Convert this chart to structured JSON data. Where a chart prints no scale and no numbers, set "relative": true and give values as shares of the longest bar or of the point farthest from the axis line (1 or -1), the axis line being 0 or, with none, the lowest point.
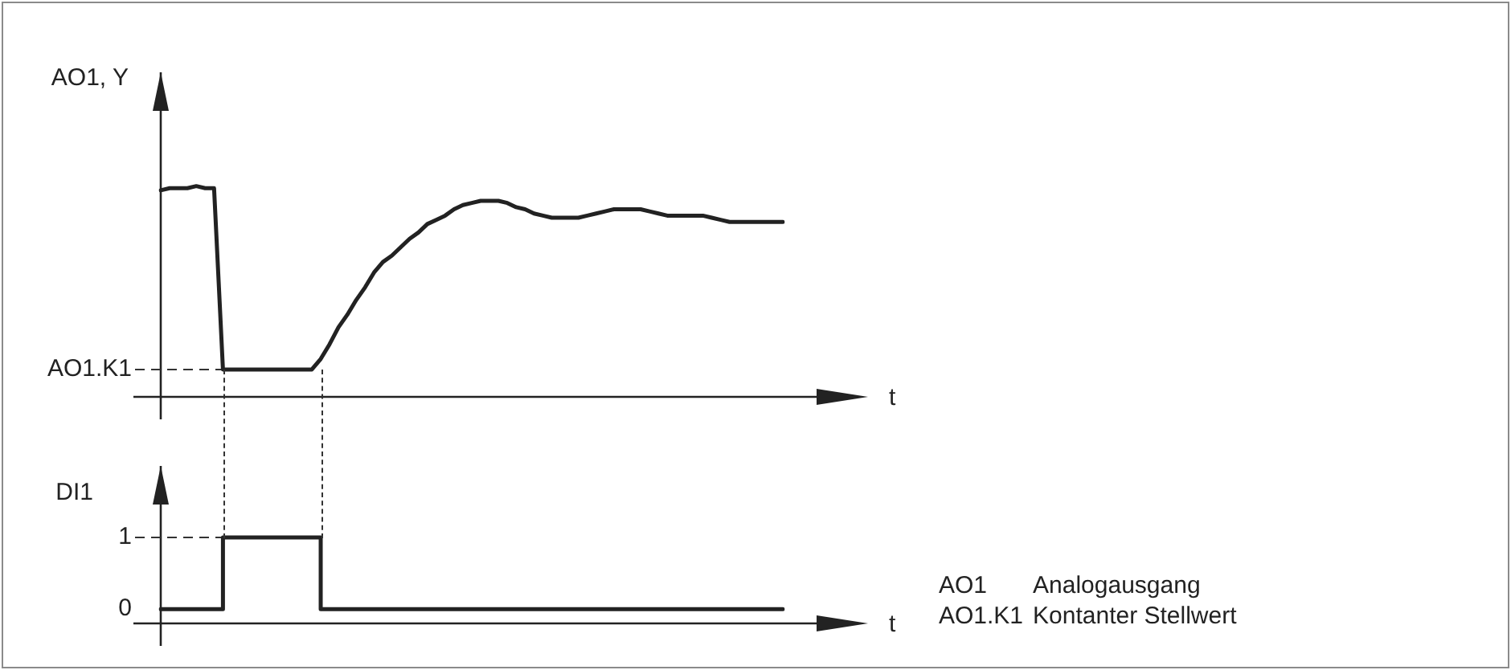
{
  "chart_data": [
    {
      "type": "line",
      "relative": true,
      "ylabel": "AO1, Y",
      "xlabel": "t",
      "tick_labels": false,
      "grid": false,
      "legend": false,
      "marker": "none",
      "line_style": "solid",
      "categories": [
        null,
        null,
        null,
        null,
        null,
        null,
        null,
        null,
        null,
        null,
        null,
        null,
        null,
        null,
        null,
        null,
        null,
        null,
        null,
        null,
        null,
        null,
        null,
        null,
        null,
        null,
        null,
        null,
        null,
        null,
        null,
        null,
        null,
        null,
        null,
        null,
        null,
        null,
        null,
        null,
        null,
        null,
        null,
        null,
        null,
        null,
        null,
        null,
        null,
        null,
        null,
        null,
        null,
        null,
        null,
        null,
        null,
        null,
        null,
        null,
        null,
        null,
        null,
        null,
        null,
        null,
        null,
        null,
        null,
        null,
        null
      ],
      "series": [
        {
          "color": "#222222",
          "values": [
            0.98,
            0.99,
            0.99,
            0.99,
            1,
            0.99,
            0.99,
            0.13,
            0.13,
            0.13,
            0.13,
            0.13,
            0.13,
            0.13,
            0.13,
            0.13,
            0.13,
            0.13,
            0.18,
            0.25,
            0.33,
            0.39,
            0.46,
            0.52,
            0.59,
            0.64,
            0.67,
            0.71,
            0.75,
            0.78,
            0.82,
            0.84,
            0.86,
            0.89,
            0.91,
            0.92,
            0.93,
            0.93,
            0.93,
            0.92,
            0.9,
            0.89,
            0.87,
            0.86,
            0.85,
            0.85,
            0.85,
            0.85,
            0.86,
            0.87,
            0.88,
            0.89,
            0.89,
            0.89,
            0.89,
            0.88,
            0.87,
            0.86,
            0.86,
            0.86,
            0.86,
            0.86,
            0.85,
            0.84,
            0.83,
            0.83,
            0.83,
            0.83,
            0.83,
            0.83,
            0.83
          ]
        }
      ],
      "ref_lines": [
        {
          "axis": "y",
          "value": 0.13,
          "label": "AO1.K1",
          "line_style": "dashed"
        }
      ]
    },
    {
      "type": "step",
      "ylabel": "DI1",
      "xlabel": "t",
      "ylim": [
        -0.2,
        2
      ],
      "yticks": [
        0,
        1
      ],
      "tick_labels": "y",
      "grid": false,
      "legend": false,
      "marker": "none",
      "line_style": "solid",
      "categories": [
        null,
        null,
        null,
        null,
        null,
        null,
        null,
        null,
        null,
        null,
        null,
        null,
        null,
        null,
        null,
        null,
        null,
        null,
        null,
        null,
        null,
        null,
        null,
        null,
        null,
        null,
        null,
        null,
        null,
        null,
        null,
        null,
        null,
        null,
        null,
        null,
        null,
        null,
        null,
        null,
        null,
        null,
        null,
        null,
        null,
        null,
        null,
        null,
        null,
        null,
        null,
        null,
        null,
        null,
        null,
        null,
        null,
        null,
        null,
        null,
        null,
        null,
        null,
        null,
        null,
        null,
        null,
        null,
        null,
        null,
        null
      ],
      "series": [
        {
          "color": "#222222",
          "values": [
            0,
            0,
            0,
            0,
            0,
            0,
            0,
            1,
            1,
            1,
            1,
            1,
            1,
            1,
            1,
            1,
            1,
            1,
            0,
            0,
            0,
            0,
            0,
            0,
            0,
            0,
            0,
            0,
            0,
            0,
            0,
            0,
            0,
            0,
            0,
            0,
            0,
            0,
            0,
            0,
            0,
            0,
            0,
            0,
            0,
            0,
            0,
            0,
            0,
            0,
            0,
            0,
            0,
            0,
            0,
            0,
            0,
            0,
            0,
            0,
            0,
            0,
            0,
            0,
            0,
            0,
            0,
            0,
            0,
            0,
            0
          ]
        }
      ],
      "ref_lines": [
        {
          "axis": "y",
          "value": 1,
          "line_style": "dashed"
        }
      ],
      "annotations": [
        "AO1 Analogausgang",
        "AO1.K1 Kontanter Stellwert"
      ]
    }
  ]
}
